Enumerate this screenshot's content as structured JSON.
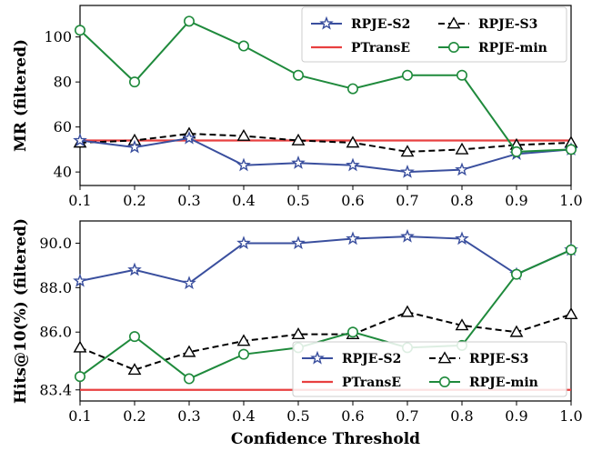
{
  "chart_data": [
    {
      "type": "line",
      "ylabel": "MR (filtered)",
      "x": [
        0.1,
        0.2,
        0.3,
        0.4,
        0.5,
        0.6,
        0.7,
        0.8,
        0.9,
        1.0
      ],
      "xlim": [
        0.1,
        1.0
      ],
      "ylim": [
        34,
        114
      ],
      "xticks": [
        "0.1",
        "0.2",
        "0.3",
        "0.4",
        "0.5",
        "0.6",
        "0.7",
        "0.8",
        "0.9",
        "1.0"
      ],
      "yticks": [
        40,
        60,
        80,
        100
      ],
      "yticks_labels": [
        "40",
        "60",
        "80",
        "100"
      ],
      "legend_position": "top-right",
      "series": [
        {
          "name": "RPJE-S2",
          "color": "#3a4f9e",
          "marker": "star",
          "dash": "solid",
          "values": [
            54,
            51,
            55,
            43,
            44,
            43,
            40,
            41,
            48,
            50
          ]
        },
        {
          "name": "RPJE-S3",
          "color": "#000000",
          "marker": "triangle",
          "dash": "dashed",
          "values": [
            53,
            54,
            57,
            56,
            54,
            53,
            49,
            50,
            52,
            53
          ]
        },
        {
          "name": "PTransE",
          "color": "#e84040",
          "marker": "none",
          "dash": "solid",
          "values": [
            54,
            54,
            54,
            54,
            54,
            54,
            54,
            54,
            54,
            54
          ]
        },
        {
          "name": "RPJE-min",
          "color": "#1f8a3c",
          "marker": "circle",
          "dash": "solid",
          "values": [
            103,
            80,
            107,
            96,
            83,
            77,
            83,
            83,
            49,
            50
          ]
        }
      ]
    },
    {
      "type": "line",
      "ylabel": "Hits@10(%) (filtered)",
      "xlabel": "Confidence Threshold",
      "x": [
        0.1,
        0.2,
        0.3,
        0.4,
        0.5,
        0.6,
        0.7,
        0.8,
        0.9,
        1.0
      ],
      "xlim": [
        0.1,
        1.0
      ],
      "ylim": [
        82.9,
        91.0
      ],
      "xticks": [
        "0.1",
        "0.2",
        "0.3",
        "0.4",
        "0.5",
        "0.6",
        "0.7",
        "0.8",
        "0.9",
        "1.0"
      ],
      "yticks": [
        83.4,
        86.0,
        88.0,
        90.0
      ],
      "yticks_labels": [
        "83.4",
        "86.0",
        "88.0",
        "90.0"
      ],
      "legend_position": "bottom-right",
      "series": [
        {
          "name": "RPJE-S2",
          "color": "#3a4f9e",
          "marker": "star",
          "dash": "solid",
          "values": [
            88.3,
            88.8,
            88.2,
            90.0,
            90.0,
            90.2,
            90.3,
            90.2,
            88.6,
            89.7
          ]
        },
        {
          "name": "RPJE-S3",
          "color": "#000000",
          "marker": "triangle",
          "dash": "dashed",
          "values": [
            85.3,
            84.3,
            85.1,
            85.6,
            85.9,
            85.9,
            86.9,
            86.3,
            86.0,
            86.8
          ]
        },
        {
          "name": "PTransE",
          "color": "#e84040",
          "marker": "none",
          "dash": "solid",
          "values": [
            83.4,
            83.4,
            83.4,
            83.4,
            83.4,
            83.4,
            83.4,
            83.4,
            83.4,
            83.4
          ]
        },
        {
          "name": "RPJE-min",
          "color": "#1f8a3c",
          "marker": "circle",
          "dash": "solid",
          "values": [
            84.0,
            85.8,
            83.9,
            85.0,
            85.3,
            86.0,
            85.3,
            85.4,
            88.6,
            89.7
          ]
        }
      ]
    }
  ]
}
